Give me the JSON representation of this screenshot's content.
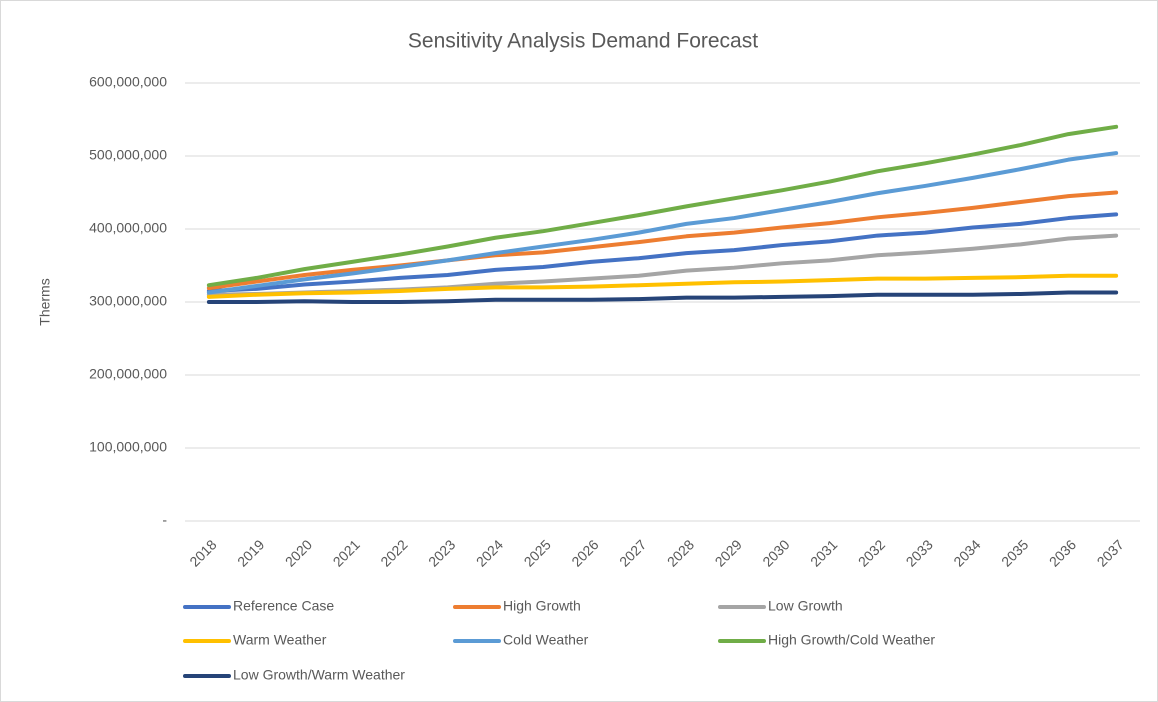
{
  "chart_data": {
    "type": "line",
    "title": "Sensitivity Analysis Demand Forecast",
    "y_label": "Therms",
    "categories": [
      "2018",
      "2019",
      "2020",
      "2021",
      "2022",
      "2023",
      "2024",
      "2025",
      "2026",
      "2027",
      "2028",
      "2029",
      "2030",
      "2031",
      "2032",
      "2033",
      "2034",
      "2035",
      "2036",
      "2037"
    ],
    "ylim": [
      0,
      600000000
    ],
    "yticks": [
      {
        "value": 0,
        "label": "-"
      },
      {
        "value": 100000000,
        "label": "100,000,000"
      },
      {
        "value": 200000000,
        "label": "200,000,000"
      },
      {
        "value": 300000000,
        "label": "300,000,000"
      },
      {
        "value": 400000000,
        "label": "400,000,000"
      },
      {
        "value": 500000000,
        "label": "500,000,000"
      },
      {
        "value": 600000000,
        "label": "600,000,000"
      }
    ],
    "grid": true,
    "legend": "bottom",
    "series": [
      {
        "name": "Reference Case",
        "color": "#4472c4",
        "values": [
          315000000,
          318000000,
          324000000,
          328000000,
          333000000,
          337000000,
          344000000,
          348000000,
          355000000,
          360000000,
          367000000,
          371000000,
          378000000,
          383000000,
          391000000,
          395000000,
          402000000,
          407000000,
          415000000,
          420000000
        ]
      },
      {
        "name": "High Growth",
        "color": "#ed7d31",
        "values": [
          319000000,
          328000000,
          337000000,
          344000000,
          350000000,
          357000000,
          364000000,
          368000000,
          375000000,
          382000000,
          390000000,
          395000000,
          402000000,
          408000000,
          416000000,
          422000000,
          429000000,
          437000000,
          445000000,
          450000000
        ]
      },
      {
        "name": "Low Growth",
        "color": "#a5a5a5",
        "values": [
          310000000,
          311000000,
          313000000,
          315000000,
          317000000,
          320000000,
          325000000,
          328000000,
          332000000,
          336000000,
          343000000,
          347000000,
          353000000,
          357000000,
          364000000,
          368000000,
          373000000,
          379000000,
          387000000,
          391000000
        ]
      },
      {
        "name": "Warm Weather",
        "color": "#ffc000",
        "values": [
          307000000,
          310000000,
          312000000,
          313000000,
          315000000,
          318000000,
          320000000,
          320000000,
          321000000,
          323000000,
          325000000,
          327000000,
          328000000,
          330000000,
          332000000,
          332000000,
          333000000,
          334000000,
          336000000,
          336000000
        ]
      },
      {
        "name": "Cold Weather",
        "color": "#5b9bd5",
        "values": [
          313000000,
          322000000,
          331000000,
          339000000,
          348000000,
          357000000,
          367000000,
          376000000,
          385000000,
          395000000,
          407000000,
          415000000,
          426000000,
          437000000,
          449000000,
          459000000,
          470000000,
          482000000,
          495000000,
          504000000
        ]
      },
      {
        "name": "High Growth/Cold Weather",
        "color": "#70ad47",
        "values": [
          323000000,
          333000000,
          345000000,
          355000000,
          365000000,
          376000000,
          388000000,
          397000000,
          408000000,
          419000000,
          431000000,
          442000000,
          453000000,
          465000000,
          479000000,
          490000000,
          502000000,
          515000000,
          530000000,
          540000000
        ]
      },
      {
        "name": "Low Growth/Warm Weather",
        "color": "#264478",
        "values": [
          300000000,
          300000000,
          301000000,
          300000000,
          300000000,
          301000000,
          303000000,
          303000000,
          303000000,
          304000000,
          306000000,
          306000000,
          307000000,
          308000000,
          310000000,
          310000000,
          310000000,
          311000000,
          313000000,
          313000000
        ]
      }
    ]
  }
}
